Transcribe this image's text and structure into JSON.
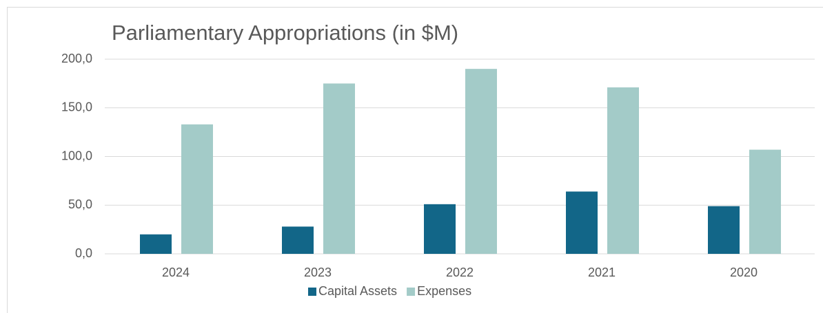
{
  "chart_data": {
    "type": "bar",
    "title": "Parliamentary Appropriations (in $M)",
    "categories": [
      "2024",
      "2023",
      "2022",
      "2021",
      "2020"
    ],
    "series": [
      {
        "name": "Capital Assets",
        "color": "#126688",
        "values": [
          20,
          28,
          51,
          64,
          49
        ]
      },
      {
        "name": "Expenses",
        "color": "#a3cbc8",
        "values": [
          133,
          175,
          190,
          171,
          107
        ]
      }
    ],
    "ylim": [
      0,
      200
    ],
    "yticks": [
      {
        "value": 0,
        "label": "0,0"
      },
      {
        "value": 50,
        "label": "50,0"
      },
      {
        "value": 100,
        "label": "100,0"
      },
      {
        "value": 150,
        "label": "150,0"
      },
      {
        "value": 200,
        "label": "200,0"
      }
    ],
    "grid": true,
    "legend": "bottom"
  }
}
